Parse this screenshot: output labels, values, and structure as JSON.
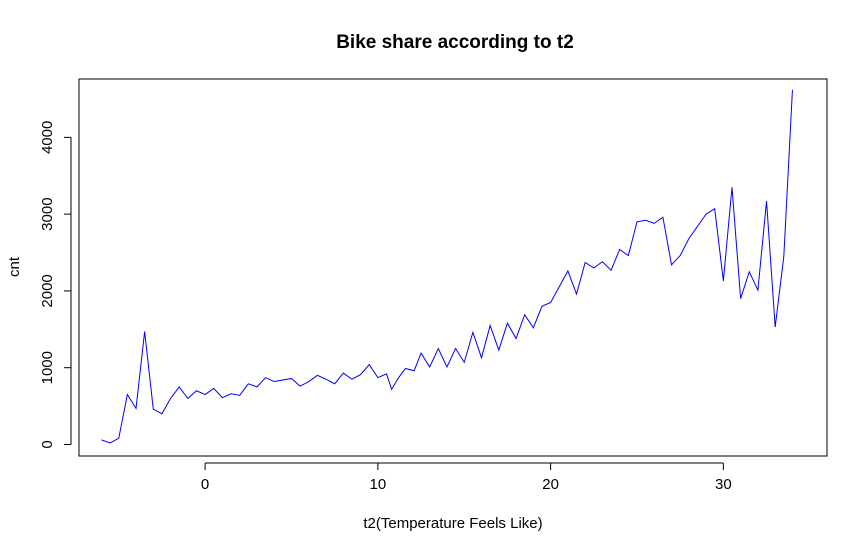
{
  "chart_data": {
    "type": "line",
    "title": "Bike share according to t2",
    "xlabel": "t2(Temperature Feels Like)",
    "ylabel": "cnt",
    "xlim": [
      -7.3,
      36.0
    ],
    "ylim": [
      -150,
      4760
    ],
    "xticks": [
      0,
      10,
      20,
      30
    ],
    "yticks": [
      0,
      1000,
      2000,
      3000,
      4000
    ],
    "grid": false,
    "series": [
      {
        "color": "#0000ff",
        "x": [
          -6,
          -5.5,
          -5,
          -4.5,
          -4,
          -3.5,
          -3,
          -2.5,
          -2,
          -1.5,
          -1,
          -0.5,
          0,
          0.5,
          1,
          1.5,
          2,
          2.5,
          3,
          3.5,
          4,
          4.5,
          5,
          5.5,
          6,
          6.5,
          7,
          7.5,
          8,
          8.5,
          9,
          9.5,
          10,
          10.5,
          10.8,
          11.2,
          11.6,
          12.1,
          12.5,
          13.0,
          13.5,
          14.0,
          14.5,
          15.0,
          15.5,
          16.0,
          16.5,
          17.0,
          17.5,
          18.0,
          18.5,
          19.0,
          19.5,
          20.0,
          21.0,
          21.5,
          22.0,
          22.5,
          23.0,
          23.5,
          24.0,
          24.5,
          25.0,
          25.5,
          26.0,
          26.5,
          27.0,
          27.5,
          28.0,
          29.0,
          29.5,
          30.0,
          30.5,
          31.0,
          31.5,
          32.0,
          32.5,
          33.0,
          33.5,
          34.0
        ],
        "values": [
          60,
          20,
          80,
          650,
          470,
          1470,
          460,
          400,
          600,
          750,
          600,
          700,
          650,
          730,
          610,
          660,
          640,
          790,
          750,
          870,
          820,
          840,
          860,
          760,
          820,
          900,
          850,
          790,
          930,
          850,
          910,
          1040,
          870,
          920,
          720,
          870,
          990,
          960,
          1190,
          1010,
          1250,
          1010,
          1250,
          1070,
          1460,
          1130,
          1550,
          1230,
          1580,
          1380,
          1690,
          1520,
          1800,
          1850,
          2260,
          1960,
          2370,
          2300,
          2380,
          2270,
          2540,
          2460,
          2900,
          2920,
          2880,
          2960,
          2340,
          2460,
          2680,
          3000,
          3070,
          2130,
          3350,
          1900,
          2250,
          2010,
          3170,
          1530,
          2450,
          4620
        ]
      }
    ]
  }
}
